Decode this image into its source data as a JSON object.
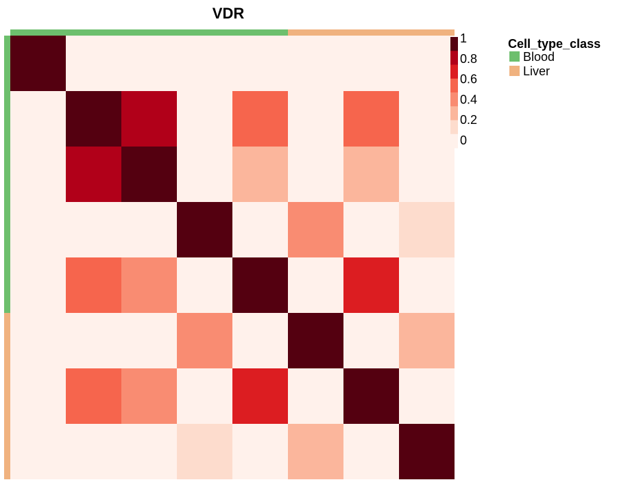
{
  "chart_data": {
    "type": "heatmap",
    "title": "VDR",
    "matrix": [
      [
        1,
        0,
        0,
        0,
        0,
        0,
        0,
        0
      ],
      [
        0,
        1,
        0.85,
        0,
        0.5,
        0,
        0.5,
        0
      ],
      [
        0,
        0.85,
        1,
        0,
        0.35,
        0,
        0.35,
        0
      ],
      [
        0,
        0,
        0,
        1,
        0,
        0.4,
        0,
        0.15
      ],
      [
        0,
        0.5,
        0.4,
        0,
        1,
        0,
        0.7,
        0
      ],
      [
        0,
        0,
        0,
        0.4,
        0,
        1,
        0,
        0.25
      ],
      [
        0,
        0.5,
        0.4,
        0,
        0.7,
        0,
        1,
        0
      ],
      [
        0,
        0,
        0,
        0.15,
        0,
        0.25,
        0,
        1
      ]
    ],
    "annotation": {
      "title": "Cell_type_class",
      "groups": [
        {
          "label": "Blood",
          "color": "#6DBF6D"
        },
        {
          "label": "Liver",
          "color": "#F0B27F"
        }
      ],
      "row_groups": [
        "Blood",
        "Blood",
        "Blood",
        "Blood",
        "Blood",
        "Liver",
        "Liver",
        "Liver"
      ],
      "col_groups": [
        "Blood",
        "Blood",
        "Blood",
        "Blood",
        "Blood",
        "Liver",
        "Liver",
        "Liver"
      ]
    },
    "colorbar": {
      "ticks": [
        "1",
        "0.8",
        "0.6",
        "0.4",
        "0.2",
        "0"
      ],
      "range": [
        0,
        1
      ],
      "colors": [
        "#FFF1EB",
        "#FDDCCD",
        "#FBB69C",
        "#F98C72",
        "#F6654D",
        "#DC1D21",
        "#B10019",
        "#540010"
      ]
    },
    "legend_position": "right"
  }
}
